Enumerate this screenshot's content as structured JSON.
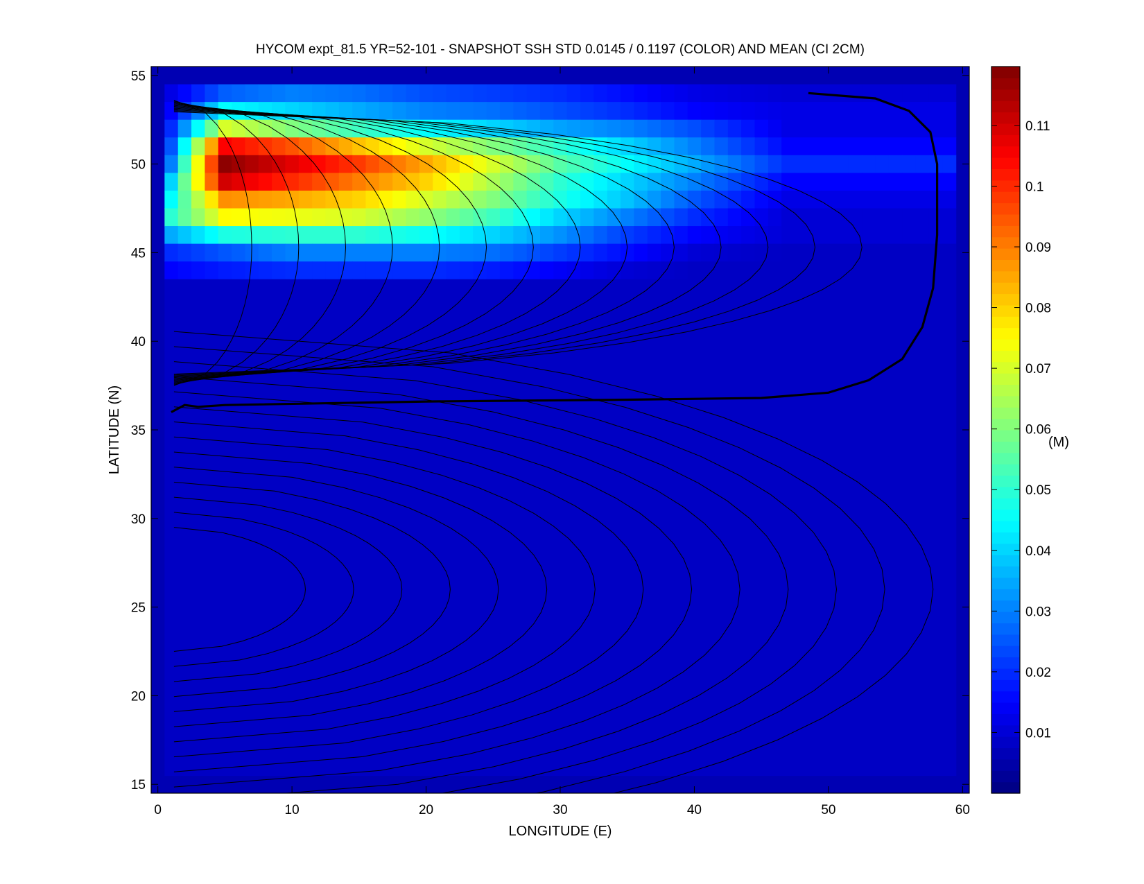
{
  "chart_data": {
    "type": "heatmap",
    "title": "HYCOM expt_81.5 YR=52-101 - SNAPSHOT SSH STD 0.0145 / 0.1197 (COLOR) AND MEAN (CI 2CM)",
    "xlabel": "LONGITUDE (E)",
    "ylabel": "LATITUDE (N)",
    "xlim": [
      -0.5,
      60.5
    ],
    "ylim": [
      14.5,
      55.5
    ],
    "xticks": [
      "0",
      "10",
      "20",
      "30",
      "40",
      "50",
      "60"
    ],
    "yticks": [
      "15",
      "20",
      "25",
      "30",
      "35",
      "40",
      "45",
      "50",
      "55"
    ],
    "colorbar": {
      "label": "(M)",
      "range": [
        0,
        0.1197
      ],
      "ticks": [
        "0.01",
        "0.02",
        "0.03",
        "0.04",
        "0.05",
        "0.06",
        "0.07",
        "0.08",
        "0.09",
        "0.1",
        "0.11"
      ],
      "colormap": "jet"
    },
    "domain_extent": {
      "lon": [
        0.5,
        59.5
      ],
      "lat": [
        15.5,
        54.5
      ]
    },
    "std_field": {
      "background": 0.008,
      "peak": {
        "lon": 5.5,
        "lat": 50,
        "value": 0.1197
      },
      "band_rows": [
        {
          "lat": 54,
          "values": [
            0.012,
            0.026,
            0.03,
            0.028,
            0.024,
            0.022,
            0.02,
            0.016,
            0.012,
            0.01
          ]
        },
        {
          "lat": 53,
          "values": [
            0.015,
            0.045,
            0.04,
            0.035,
            0.03,
            0.028,
            0.024,
            0.02,
            0.015,
            0.012
          ]
        },
        {
          "lat": 52,
          "values": [
            0.02,
            0.07,
            0.06,
            0.052,
            0.045,
            0.04,
            0.034,
            0.03,
            0.024,
            0.012
          ]
        },
        {
          "lat": 51,
          "values": [
            0.025,
            0.105,
            0.095,
            0.082,
            0.07,
            0.06,
            0.05,
            0.04,
            0.03,
            0.015
          ]
        },
        {
          "lat": 50,
          "values": [
            0.03,
            0.118,
            0.108,
            0.098,
            0.085,
            0.07,
            0.055,
            0.045,
            0.035,
            0.02
          ]
        },
        {
          "lat": 49,
          "values": [
            0.04,
            0.11,
            0.1,
            0.09,
            0.08,
            0.065,
            0.05,
            0.04,
            0.03,
            0.015
          ]
        },
        {
          "lat": 48,
          "values": [
            0.045,
            0.088,
            0.085,
            0.08,
            0.07,
            0.06,
            0.048,
            0.038,
            0.025,
            0.012
          ]
        },
        {
          "lat": 47,
          "values": [
            0.05,
            0.075,
            0.073,
            0.07,
            0.062,
            0.052,
            0.04,
            0.03,
            0.02,
            0.01
          ]
        },
        {
          "lat": 46,
          "values": [
            0.035,
            0.048,
            0.05,
            0.05,
            0.046,
            0.04,
            0.032,
            0.022,
            0.015,
            0.01
          ]
        },
        {
          "lat": 45,
          "values": [
            0.02,
            0.025,
            0.03,
            0.03,
            0.03,
            0.028,
            0.022,
            0.016,
            0.01,
            0.008
          ]
        },
        {
          "lat": 44,
          "values": [
            0.015,
            0.018,
            0.02,
            0.02,
            0.02,
            0.018,
            0.014,
            0.01,
            0.008,
            0.008
          ]
        }
      ],
      "band_lons": [
        1,
        5,
        10,
        15,
        20,
        25,
        30,
        35,
        40,
        47
      ]
    },
    "mean_contours": {
      "interval_cm": 2,
      "zero_line": "bold, from 1 E 36 N eastward along about 36.5 N to 48 E, then turning north near 58 E up to 54 N at 48.5 E"
    }
  }
}
